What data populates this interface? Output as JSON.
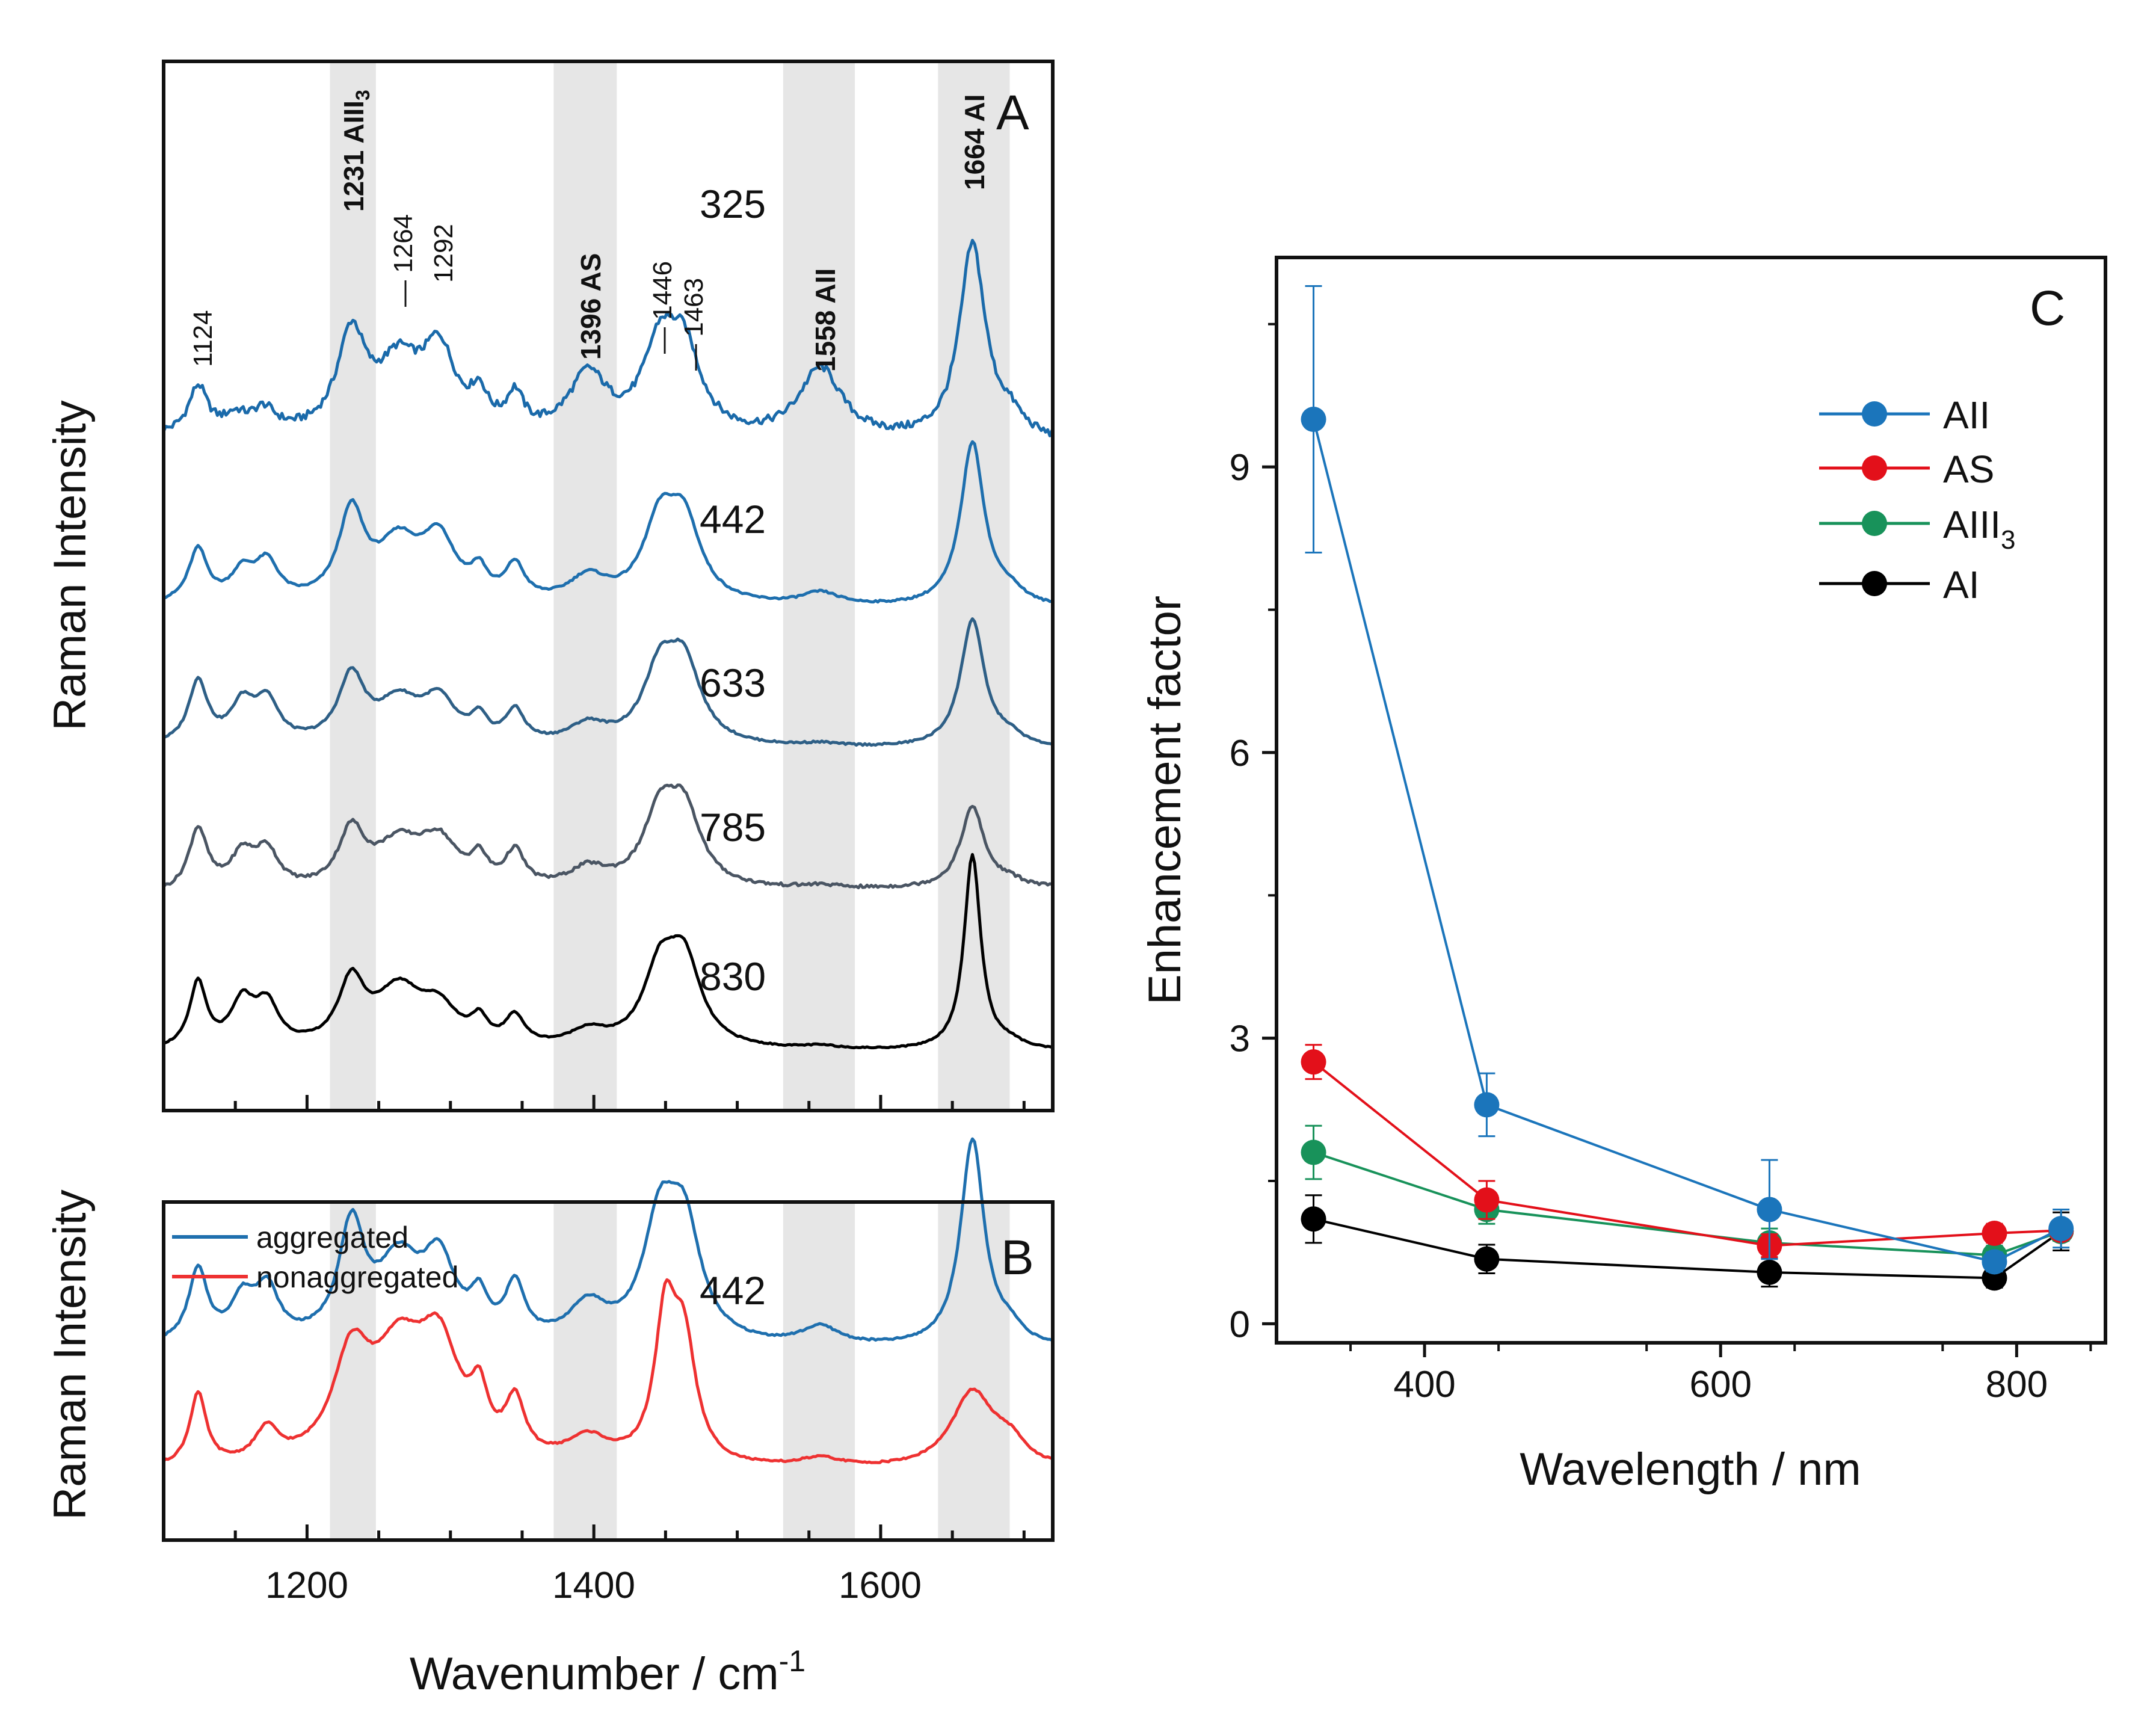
{
  "colors": {
    "spec_325": "#1a6aaa",
    "spec_442": "#1e6fae",
    "spec_633": "#2e5f86",
    "spec_785": "#4a5563",
    "spec_830": "#000000",
    "aggregated": "#1e6fae",
    "nonaggregated": "#ee3131",
    "AII": "#1b75bb",
    "AS": "#e3101a",
    "AIII3": "#18925a",
    "AI": "#000000",
    "band": "#e6e6e6"
  },
  "shared_x_axis": {
    "label": "Wavenumber / cm",
    "label_sup": "-1",
    "xlim": [
      1100,
      1720
    ],
    "ticks": [
      1200,
      1400,
      1600
    ],
    "tick_labels": [
      "1200",
      "1400",
      "1600"
    ]
  },
  "shaded_bands": [
    [
      1216,
      1248
    ],
    [
      1372,
      1416
    ],
    [
      1532,
      1582
    ],
    [
      1640,
      1690
    ]
  ],
  "chart_data": [
    {
      "panel": "A",
      "type": "line",
      "panel_label": "A",
      "ylabel": "Raman Intensity",
      "xlim": [
        1100,
        1720
      ],
      "band_labels": [
        {
          "text": "1231 AIII",
          "sub": "3",
          "x": 1231
        },
        {
          "text": "1396 AS",
          "x": 1396
        },
        {
          "text": "1558 AII",
          "x": 1558
        },
        {
          "text": "1664 AI",
          "x": 1664
        }
      ],
      "peak_labels": [
        {
          "text": "1124",
          "x": 1124
        },
        {
          "text": "1264",
          "x": 1264
        },
        {
          "text": "1292",
          "x": 1292
        },
        {
          "text": "1446",
          "x": 1446
        },
        {
          "text": "1463",
          "x": 1463
        }
      ],
      "series": [
        {
          "name": "325",
          "offset": 4.0,
          "baseline": [
            0.05,
            0.0
          ],
          "scale": 1.0,
          "peaks": [
            [
              1124,
              0.3,
              8
            ],
            [
              1150,
              0.1,
              10
            ],
            [
              1170,
              0.14,
              10
            ],
            [
              1231,
              0.62,
              12
            ],
            [
              1264,
              0.42,
              18
            ],
            [
              1292,
              0.5,
              14
            ],
            [
              1320,
              0.2,
              7
            ],
            [
              1345,
              0.22,
              7
            ],
            [
              1396,
              0.38,
              16
            ],
            [
              1446,
              0.52,
              14
            ],
            [
              1463,
              0.5,
              14
            ],
            [
              1558,
              0.45,
              18
            ],
            [
              1664,
              1.25,
              11
            ],
            [
              1690,
              0.12,
              12
            ]
          ]
        },
        {
          "name": "442",
          "offset": 2.95,
          "baseline": [
            0.02,
            0.0
          ],
          "scale": 1.0,
          "peaks": [
            [
              1124,
              0.34,
              8
            ],
            [
              1155,
              0.18,
              10
            ],
            [
              1172,
              0.24,
              10
            ],
            [
              1231,
              0.56,
              11
            ],
            [
              1264,
              0.36,
              18
            ],
            [
              1292,
              0.38,
              14
            ],
            [
              1320,
              0.16,
              7
            ],
            [
              1345,
              0.22,
              8
            ],
            [
              1396,
              0.16,
              16
            ],
            [
              1446,
              0.48,
              14
            ],
            [
              1463,
              0.48,
              14
            ],
            [
              1558,
              0.08,
              16
            ],
            [
              1664,
              1.05,
              10
            ],
            [
              1690,
              0.08,
              12
            ]
          ]
        },
        {
          "name": "633",
          "offset": 2.05,
          "baseline": [
            0.02,
            0.0
          ],
          "scale": 1.0,
          "peaks": [
            [
              1124,
              0.4,
              8
            ],
            [
              1155,
              0.24,
              10
            ],
            [
              1172,
              0.26,
              10
            ],
            [
              1231,
              0.42,
              11
            ],
            [
              1264,
              0.26,
              18
            ],
            [
              1292,
              0.26,
              14
            ],
            [
              1320,
              0.14,
              7
            ],
            [
              1345,
              0.2,
              8
            ],
            [
              1396,
              0.12,
              16
            ],
            [
              1446,
              0.44,
              14
            ],
            [
              1463,
              0.48,
              14
            ],
            [
              1558,
              0.02,
              16
            ],
            [
              1664,
              0.82,
              10
            ],
            [
              1690,
              0.06,
              12
            ]
          ]
        },
        {
          "name": "785",
          "offset": 1.1,
          "baseline": [
            0.02,
            0.06
          ],
          "scale": 1.0,
          "peaks": [
            [
              1124,
              0.4,
              8
            ],
            [
              1155,
              0.22,
              10
            ],
            [
              1172,
              0.24,
              10
            ],
            [
              1231,
              0.36,
              11
            ],
            [
              1264,
              0.28,
              20
            ],
            [
              1292,
              0.28,
              16
            ],
            [
              1320,
              0.16,
              7
            ],
            [
              1345,
              0.22,
              8
            ],
            [
              1396,
              0.12,
              16
            ],
            [
              1446,
              0.44,
              14
            ],
            [
              1463,
              0.46,
              14
            ],
            [
              1558,
              0.02,
              16
            ],
            [
              1664,
              0.52,
              10
            ],
            [
              1690,
              0.04,
              12
            ]
          ]
        },
        {
          "name": "830",
          "offset": 0.12,
          "baseline": [
            0.0,
            0.0
          ],
          "scale": 1.0,
          "peaks": [
            [
              1124,
              0.42,
              7
            ],
            [
              1155,
              0.28,
              10
            ],
            [
              1172,
              0.26,
              10
            ],
            [
              1231,
              0.4,
              11
            ],
            [
              1264,
              0.36,
              20
            ],
            [
              1292,
              0.22,
              16
            ],
            [
              1320,
              0.14,
              7
            ],
            [
              1345,
              0.18,
              8
            ],
            [
              1396,
              0.1,
              16
            ],
            [
              1446,
              0.46,
              14
            ],
            [
              1463,
              0.52,
              14
            ],
            [
              1558,
              0.02,
              16
            ],
            [
              1664,
              1.25,
              7
            ],
            [
              1690,
              0.04,
              12
            ]
          ]
        }
      ],
      "trace_labels": [
        "325",
        "442",
        "633",
        "785",
        "830"
      ]
    },
    {
      "panel": "B",
      "type": "line",
      "panel_label": "B",
      "ylabel": "Raman Intensity",
      "xlim": [
        1100,
        1720
      ],
      "trace_label": "442",
      "legend": [
        "aggregated",
        "nonaggregated"
      ],
      "series": [
        {
          "name": "aggregated",
          "offset": 0.95,
          "baseline": [
            0.02,
            0.0
          ],
          "peaks": [
            [
              1124,
              0.4,
              8
            ],
            [
              1155,
              0.22,
              10
            ],
            [
              1172,
              0.28,
              10
            ],
            [
              1231,
              0.62,
              11
            ],
            [
              1264,
              0.42,
              18
            ],
            [
              1292,
              0.42,
              14
            ],
            [
              1320,
              0.2,
              7
            ],
            [
              1345,
              0.3,
              8
            ],
            [
              1396,
              0.2,
              16
            ],
            [
              1446,
              0.62,
              14
            ],
            [
              1463,
              0.6,
              14
            ],
            [
              1558,
              0.1,
              16
            ],
            [
              1664,
              1.15,
              10
            ],
            [
              1690,
              0.08,
              12
            ]
          ]
        },
        {
          "name": "nonaggregated",
          "offset": 0.28,
          "baseline": [
            0.0,
            0.0
          ],
          "peaks": [
            [
              1124,
              0.4,
              7
            ],
            [
              1172,
              0.18,
              10
            ],
            [
              1231,
              0.55,
              16
            ],
            [
              1264,
              0.55,
              22
            ],
            [
              1292,
              0.58,
              18
            ],
            [
              1320,
              0.28,
              7
            ],
            [
              1345,
              0.3,
              8
            ],
            [
              1396,
              0.14,
              18
            ],
            [
              1450,
              0.78,
              9
            ],
            [
              1463,
              0.62,
              10
            ],
            [
              1558,
              0.05,
              18
            ],
            [
              1664,
              0.42,
              18
            ],
            [
              1690,
              0.12,
              14
            ]
          ]
        }
      ]
    },
    {
      "panel": "C",
      "type": "scatter",
      "panel_label": "C",
      "xlabel": "Wavelength / nm",
      "ylabel": "Enhancement factor",
      "xlim": [
        300,
        860
      ],
      "ylim": [
        -0.2,
        11.2
      ],
      "xticks": [
        400,
        600,
        800
      ],
      "yticks": [
        0,
        3,
        6,
        9
      ],
      "x": [
        325,
        442,
        633,
        785,
        830
      ],
      "series": [
        {
          "name": "AII",
          "legend": "AII",
          "values": [
            9.5,
            2.3,
            1.2,
            0.65,
            1.0
          ],
          "errors": [
            1.4,
            0.33,
            0.52,
            0.1,
            0.2
          ]
        },
        {
          "name": "AS",
          "legend": "AS",
          "values": [
            2.75,
            1.3,
            0.82,
            0.95,
            0.98
          ],
          "errors": [
            0.18,
            0.2,
            0.12,
            0.1,
            0.08
          ]
        },
        {
          "name": "AIII3",
          "legend": "AIII",
          "legend_sub": "3",
          "values": [
            1.8,
            1.2,
            0.85,
            0.72,
            0.97
          ],
          "errors": [
            0.28,
            0.15,
            0.15,
            0.1,
            0.1
          ]
        },
        {
          "name": "AI",
          "legend": "AI",
          "values": [
            1.1,
            0.68,
            0.54,
            0.48,
            0.97
          ],
          "errors": [
            0.25,
            0.15,
            0.15,
            0.1,
            0.2
          ]
        }
      ]
    }
  ]
}
